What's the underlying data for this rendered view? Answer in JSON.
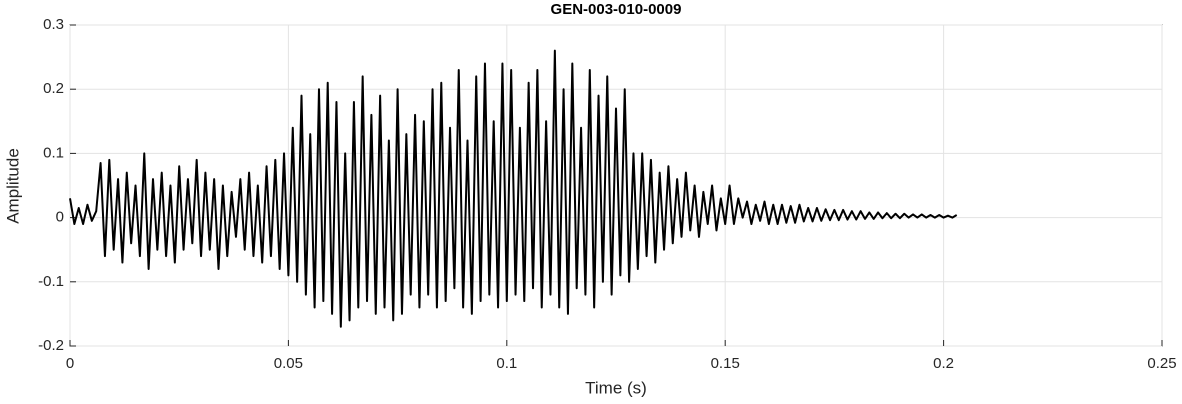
{
  "chart_data": {
    "type": "line",
    "title": "GEN-003-010-0009",
    "xlabel": "Time (s)",
    "ylabel": "Amplitude",
    "x": [
      0,
      0.001,
      0.002,
      0.003,
      0.004,
      0.005,
      0.006,
      0.007,
      0.008,
      0.009,
      0.01,
      0.011,
      0.012,
      0.013,
      0.014,
      0.015,
      0.016,
      0.017,
      0.018,
      0.019,
      0.02,
      0.021,
      0.022,
      0.023,
      0.024,
      0.025,
      0.026,
      0.027,
      0.028,
      0.029,
      0.03,
      0.031,
      0.032,
      0.033,
      0.034,
      0.035,
      0.036,
      0.037,
      0.038,
      0.039,
      0.04,
      0.041,
      0.042,
      0.043,
      0.044,
      0.045,
      0.046,
      0.047,
      0.048,
      0.049,
      0.05,
      0.051,
      0.052,
      0.053,
      0.054,
      0.055,
      0.056,
      0.057,
      0.058,
      0.059,
      0.06,
      0.061,
      0.062,
      0.063,
      0.064,
      0.065,
      0.066,
      0.067,
      0.068,
      0.069,
      0.07,
      0.071,
      0.072,
      0.073,
      0.074,
      0.075,
      0.076,
      0.077,
      0.078,
      0.079,
      0.08,
      0.081,
      0.082,
      0.083,
      0.084,
      0.085,
      0.086,
      0.087,
      0.088,
      0.089,
      0.09,
      0.091,
      0.092,
      0.093,
      0.094,
      0.095,
      0.096,
      0.097,
      0.098,
      0.099,
      0.1,
      0.101,
      0.102,
      0.103,
      0.104,
      0.105,
      0.106,
      0.107,
      0.108,
      0.109,
      0.11,
      0.111,
      0.112,
      0.113,
      0.114,
      0.115,
      0.116,
      0.117,
      0.118,
      0.119,
      0.12,
      0.121,
      0.122,
      0.123,
      0.124,
      0.125,
      0.126,
      0.127,
      0.128,
      0.129,
      0.13,
      0.131,
      0.132,
      0.133,
      0.134,
      0.135,
      0.136,
      0.137,
      0.138,
      0.139,
      0.14,
      0.141,
      0.142,
      0.143,
      0.144,
      0.145,
      0.146,
      0.147,
      0.148,
      0.149,
      0.15,
      0.151,
      0.152,
      0.153,
      0.154,
      0.155,
      0.156,
      0.157,
      0.158,
      0.159,
      0.16,
      0.161,
      0.162,
      0.163,
      0.164,
      0.165,
      0.166,
      0.167,
      0.168,
      0.169,
      0.17,
      0.171,
      0.172,
      0.173,
      0.174,
      0.175,
      0.176,
      0.177,
      0.178,
      0.179,
      0.18,
      0.181,
      0.182,
      0.183,
      0.184,
      0.185,
      0.186,
      0.187,
      0.188,
      0.189,
      0.19,
      0.191,
      0.192,
      0.193,
      0.194,
      0.195,
      0.196,
      0.197,
      0.198,
      0.199,
      0.2,
      0.201,
      0.202,
      0.203
    ],
    "values": [
      0.03,
      -0.01,
      0.015,
      -0.01,
      0.02,
      -0.005,
      0.01,
      0.085,
      -0.06,
      0.09,
      -0.05,
      0.06,
      -0.07,
      0.07,
      -0.04,
      0.05,
      -0.06,
      0.1,
      -0.08,
      0.06,
      -0.05,
      0.07,
      -0.06,
      0.05,
      -0.07,
      0.08,
      -0.05,
      0.06,
      -0.04,
      0.09,
      -0.06,
      0.07,
      -0.05,
      0.06,
      -0.08,
      0.05,
      -0.06,
      0.04,
      -0.03,
      0.06,
      -0.05,
      0.07,
      -0.06,
      0.05,
      -0.07,
      0.08,
      -0.06,
      0.09,
      -0.08,
      0.1,
      -0.09,
      0.14,
      -0.1,
      0.19,
      -0.12,
      0.13,
      -0.14,
      0.2,
      -0.13,
      0.21,
      -0.15,
      0.18,
      -0.17,
      0.1,
      -0.16,
      0.18,
      -0.14,
      0.22,
      -0.13,
      0.16,
      -0.15,
      0.19,
      -0.14,
      0.12,
      -0.16,
      0.2,
      -0.15,
      0.13,
      -0.12,
      0.16,
      -0.14,
      0.15,
      -0.12,
      0.2,
      -0.14,
      0.21,
      -0.13,
      0.14,
      -0.11,
      0.23,
      -0.14,
      0.12,
      -0.15,
      0.22,
      -0.13,
      0.24,
      -0.12,
      0.15,
      -0.14,
      0.24,
      -0.13,
      0.23,
      -0.12,
      0.14,
      -0.13,
      0.21,
      -0.11,
      0.23,
      -0.14,
      0.15,
      -0.12,
      0.26,
      -0.14,
      0.2,
      -0.15,
      0.24,
      -0.11,
      0.14,
      -0.12,
      0.23,
      -0.14,
      0.19,
      -0.1,
      0.22,
      -0.12,
      0.17,
      -0.09,
      0.2,
      -0.1,
      0.1,
      -0.08,
      0.1,
      -0.06,
      0.09,
      -0.07,
      0.07,
      -0.05,
      0.08,
      -0.04,
      0.06,
      -0.03,
      0.07,
      -0.02,
      0.05,
      -0.03,
      0.04,
      -0.01,
      0.05,
      -0.02,
      0.03,
      -0.01,
      0.05,
      -0.01,
      0.03,
      0,
      0.025,
      -0.01,
      0.02,
      -0.005,
      0.025,
      -0.01,
      0.02,
      -0.01,
      0.02,
      -0.008,
      0.018,
      -0.008,
      0.02,
      -0.006,
      0.015,
      -0.006,
      0.015,
      -0.005,
      0.013,
      -0.004,
      0.012,
      -0.004,
      0.012,
      -0.003,
      0.01,
      -0.003,
      0.01,
      -0.002,
      0.008,
      -0.002,
      0.008,
      -0.001,
      0.007,
      -0.001,
      0.006,
      -0.001,
      0.006,
      0,
      0.005,
      0,
      0.005,
      0,
      0.004,
      0,
      0.004,
      0,
      0.003,
      0,
      0.004
    ],
    "color": "#000000",
    "xlim": [
      0,
      0.25
    ],
    "xticks": [
      0,
      0.05,
      0.1,
      0.15,
      0.2,
      0.25
    ],
    "ylim": [
      -0.2,
      0.3
    ],
    "yticks": [
      -0.2,
      -0.1,
      0,
      0.1,
      0.2,
      0.3
    ],
    "grid": true
  }
}
